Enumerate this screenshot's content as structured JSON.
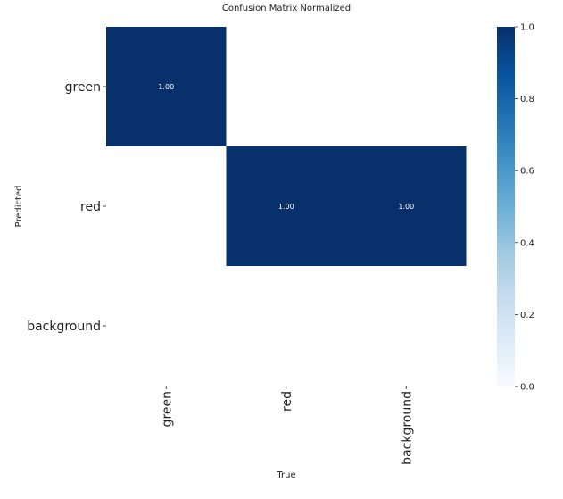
{
  "chart_data": {
    "type": "heatmap",
    "title": "Confusion Matrix Normalized",
    "xlabel": "True",
    "ylabel": "Predicted",
    "x_categories": [
      "green",
      "red",
      "background"
    ],
    "y_categories": [
      "green",
      "red",
      "background"
    ],
    "values": [
      [
        1.0,
        null,
        null
      ],
      [
        null,
        1.0,
        1.0
      ],
      [
        null,
        null,
        null
      ]
    ],
    "cell_labels": [
      [
        "1.00",
        "",
        ""
      ],
      [
        "",
        "1.00",
        "1.00"
      ],
      [
        "",
        "",
        ""
      ]
    ],
    "colorbar": {
      "range": [
        0.0,
        1.0
      ],
      "ticks": [
        "0.0",
        "0.2",
        "0.4",
        "0.6",
        "0.8",
        "1.0"
      ],
      "colormap": "Blues",
      "color_low": "#f7fbff",
      "color_high": "#08306b"
    },
    "grid": false
  }
}
